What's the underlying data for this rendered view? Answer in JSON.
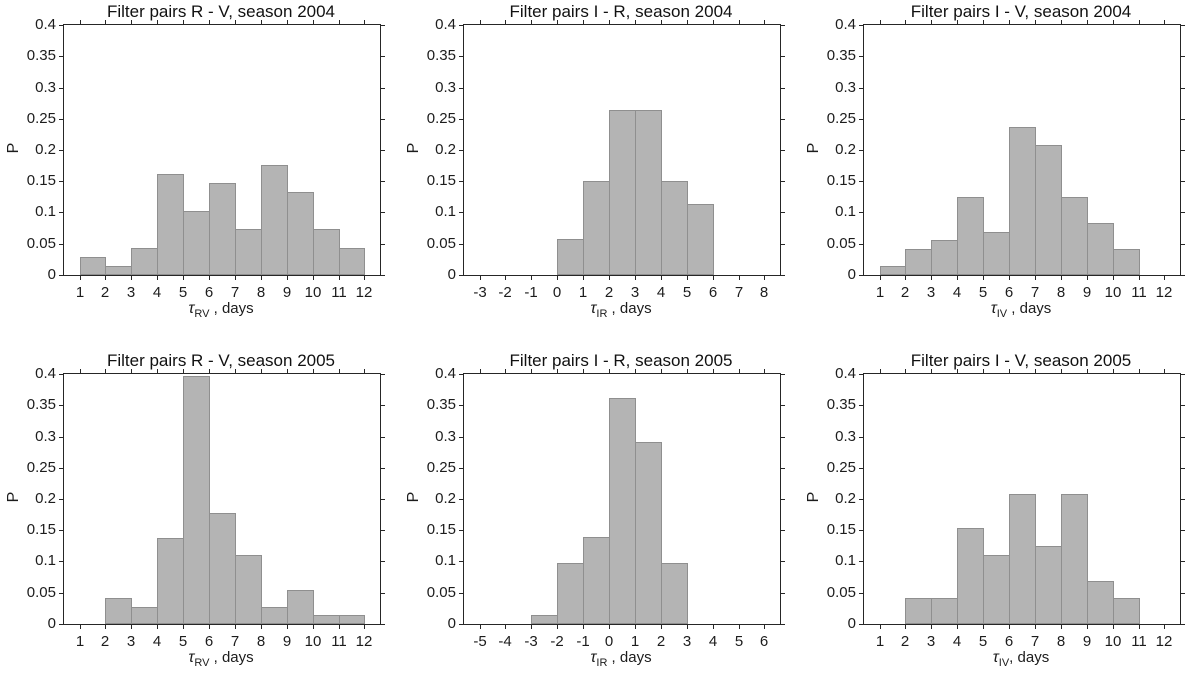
{
  "figure": {
    "background": "#ffffff",
    "bar_fill": "#b4b4b4",
    "bar_edge": "#8f8f8f",
    "axis_color": "#262626",
    "text_color": "#1c1c1c"
  },
  "chart_data": [
    {
      "type": "bar",
      "title": "Filter pairs R - V, season 2004",
      "ylabel": "P",
      "xlabel": {
        "tau": "τ",
        "sub": "RV",
        "rest": " , days"
      },
      "x_ticks": [
        1,
        2,
        3,
        4,
        5,
        6,
        7,
        8,
        9,
        10,
        11,
        12
      ],
      "xlim": [
        0.4,
        12.6
      ],
      "ylim": [
        0,
        0.4
      ],
      "y_ticks": [
        0,
        0.05,
        0.1,
        0.15,
        0.2,
        0.25,
        0.3,
        0.35,
        0.4
      ],
      "y_tick_labels": [
        "0",
        "0.05",
        "0.1",
        "0.15",
        "0.2",
        "0.25",
        "0.3",
        "0.35",
        "0.4"
      ],
      "grid": false,
      "legend": null,
      "bin_start": 1,
      "bin_width": 1,
      "values": [
        0.029,
        0.015,
        0.044,
        0.162,
        0.103,
        0.147,
        0.074,
        0.176,
        0.132,
        0.074,
        0.044
      ]
    },
    {
      "type": "bar",
      "title": "Filter pairs I - R, season 2004",
      "ylabel": "P",
      "xlabel": {
        "tau": "τ",
        "sub": "IR",
        "rest": " , days"
      },
      "x_ticks": [
        -3,
        -2,
        -1,
        0,
        1,
        2,
        3,
        4,
        5,
        6,
        7,
        8
      ],
      "xlim": [
        -3.6,
        8.6
      ],
      "ylim": [
        0,
        0.4
      ],
      "y_ticks": [
        0,
        0.05,
        0.1,
        0.15,
        0.2,
        0.25,
        0.3,
        0.35,
        0.4
      ],
      "y_tick_labels": [
        "0",
        "0.05",
        "0.1",
        "0.15",
        "0.2",
        "0.25",
        "0.3",
        "0.35",
        "0.4"
      ],
      "grid": false,
      "legend": null,
      "bin_start": 0,
      "bin_width": 1,
      "values": [
        0.057,
        0.151,
        0.264,
        0.264,
        0.151,
        0.113
      ]
    },
    {
      "type": "bar",
      "title": "Filter pairs I - V, season 2004",
      "ylabel": "P",
      "xlabel": {
        "tau": "τ",
        "sub": "IV",
        "rest": " , days"
      },
      "x_ticks": [
        1,
        2,
        3,
        4,
        5,
        6,
        7,
        8,
        9,
        10,
        11,
        12
      ],
      "xlim": [
        0.4,
        12.6
      ],
      "ylim": [
        0,
        0.4
      ],
      "y_ticks": [
        0,
        0.05,
        0.1,
        0.15,
        0.2,
        0.25,
        0.3,
        0.35,
        0.4
      ],
      "y_tick_labels": [
        "0",
        "0.05",
        "0.1",
        "0.15",
        "0.2",
        "0.25",
        "0.3",
        "0.35",
        "0.4"
      ],
      "grid": false,
      "legend": null,
      "bin_start": 1,
      "bin_width": 1,
      "values": [
        0.014,
        0.042,
        0.056,
        0.125,
        0.069,
        0.236,
        0.208,
        0.125,
        0.083,
        0.042
      ]
    },
    {
      "type": "bar",
      "title": "Filter pairs R - V, season 2005",
      "ylabel": "P",
      "xlabel": {
        "tau": "τ",
        "sub": "RV",
        "rest": " , days"
      },
      "x_ticks": [
        1,
        2,
        3,
        4,
        5,
        6,
        7,
        8,
        9,
        10,
        11,
        12
      ],
      "xlim": [
        0.4,
        12.6
      ],
      "ylim": [
        0,
        0.4
      ],
      "y_ticks": [
        0,
        0.05,
        0.1,
        0.15,
        0.2,
        0.25,
        0.3,
        0.35,
        0.4
      ],
      "y_tick_labels": [
        "0",
        "0.05",
        "0.1",
        "0.15",
        "0.2",
        "0.25",
        "0.3",
        "0.35",
        "0.4"
      ],
      "grid": false,
      "legend": null,
      "bin_start": 2,
      "bin_width": 1,
      "values": [
        0.041,
        0.027,
        0.137,
        0.397,
        0.178,
        0.11,
        0.027,
        0.055,
        0.014,
        0.014
      ]
    },
    {
      "type": "bar",
      "title": "Filter pairs I - R, season 2005",
      "ylabel": "P",
      "xlabel": {
        "tau": "τ",
        "sub": "IR",
        "rest": " , days"
      },
      "x_ticks": [
        -5,
        -4,
        -3,
        -2,
        -1,
        0,
        1,
        2,
        3,
        4,
        5,
        6
      ],
      "xlim": [
        -5.6,
        6.6
      ],
      "ylim": [
        0,
        0.4
      ],
      "y_ticks": [
        0,
        0.05,
        0.1,
        0.15,
        0.2,
        0.25,
        0.3,
        0.35,
        0.4
      ],
      "y_tick_labels": [
        "0",
        "0.05",
        "0.1",
        "0.15",
        "0.2",
        "0.25",
        "0.3",
        "0.35",
        "0.4"
      ],
      "grid": false,
      "legend": null,
      "bin_start": -3,
      "bin_width": 1,
      "values": [
        0.014,
        0.097,
        0.139,
        0.361,
        0.292,
        0.097
      ]
    },
    {
      "type": "bar",
      "title": "Filter pairs I - V, season 2005",
      "ylabel": "P",
      "xlabel": {
        "tau": "τ",
        "sub": "IV",
        "rest": ", days"
      },
      "x_ticks": [
        1,
        2,
        3,
        4,
        5,
        6,
        7,
        8,
        9,
        10,
        11,
        12
      ],
      "xlim": [
        0.4,
        12.6
      ],
      "ylim": [
        0,
        0.4
      ],
      "y_ticks": [
        0,
        0.05,
        0.1,
        0.15,
        0.2,
        0.25,
        0.3,
        0.35,
        0.4
      ],
      "y_tick_labels": [
        "0",
        "0.05",
        "0.1",
        "0.15",
        "0.2",
        "0.25",
        "0.3",
        "0.35",
        "0.4"
      ],
      "grid": false,
      "legend": null,
      "bin_start": 2,
      "bin_width": 1,
      "values": [
        0.042,
        0.042,
        0.153,
        0.111,
        0.208,
        0.125,
        0.208,
        0.069,
        0.042
      ]
    }
  ]
}
